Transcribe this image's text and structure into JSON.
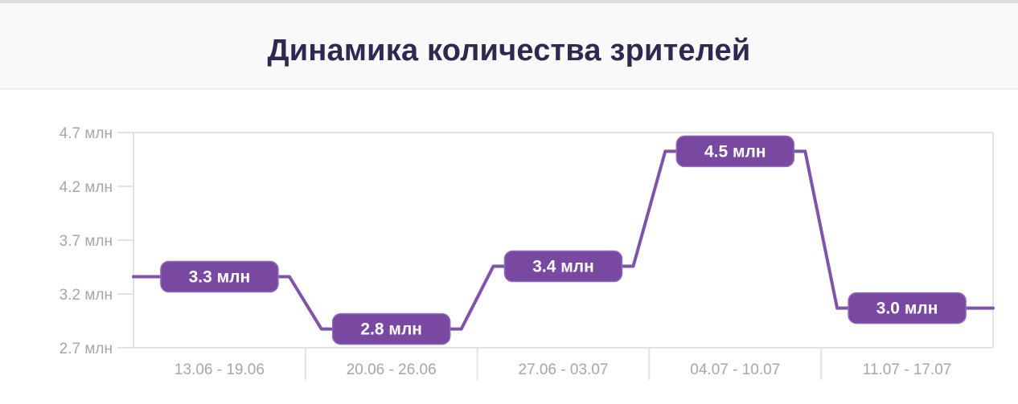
{
  "page": {
    "top_strip_color": "#dcdde3",
    "header_background": "#f9f9fa",
    "divider_color": "#f1f1f3",
    "chart_background": "#ffffff",
    "title_color": "#2d2950"
  },
  "title": "Динамика количества зрителей",
  "chart_data": {
    "type": "line",
    "subtype": "stepped-line-with-ramps",
    "title": "Динамика количества зрителей",
    "categories": [
      "13.06 - 19.06",
      "20.06 - 26.06",
      "27.06 - 03.07",
      "04.07 - 10.07",
      "11.07 - 17.07"
    ],
    "values": [
      3.3,
      2.8,
      3.4,
      4.5,
      3.0
    ],
    "point_labels": [
      "3.3 млн",
      "2.8 млн",
      "3.4 млн",
      "4.5 млн",
      "3.0 млн"
    ],
    "unit": "млн",
    "xlabel": "",
    "ylabel": "",
    "y_tick_labels": [
      "4.7 млн",
      "4.2 млн",
      "3.7 млн",
      "3.2 млн",
      "2.7 млн"
    ],
    "ylim": [
      2.7,
      4.7
    ],
    "legend": false,
    "grid": "top and bottom horizontal borders, left/right frame lines, short y-ticks, x-separators below axis",
    "colors": {
      "line": "#7e53a9",
      "badge_fill": "#7948a1",
      "badge_border": "#9069ba",
      "badge_text": "#ffffff",
      "axis_line": "#e2e2e4",
      "tick_label": "#a6a6a9"
    }
  }
}
